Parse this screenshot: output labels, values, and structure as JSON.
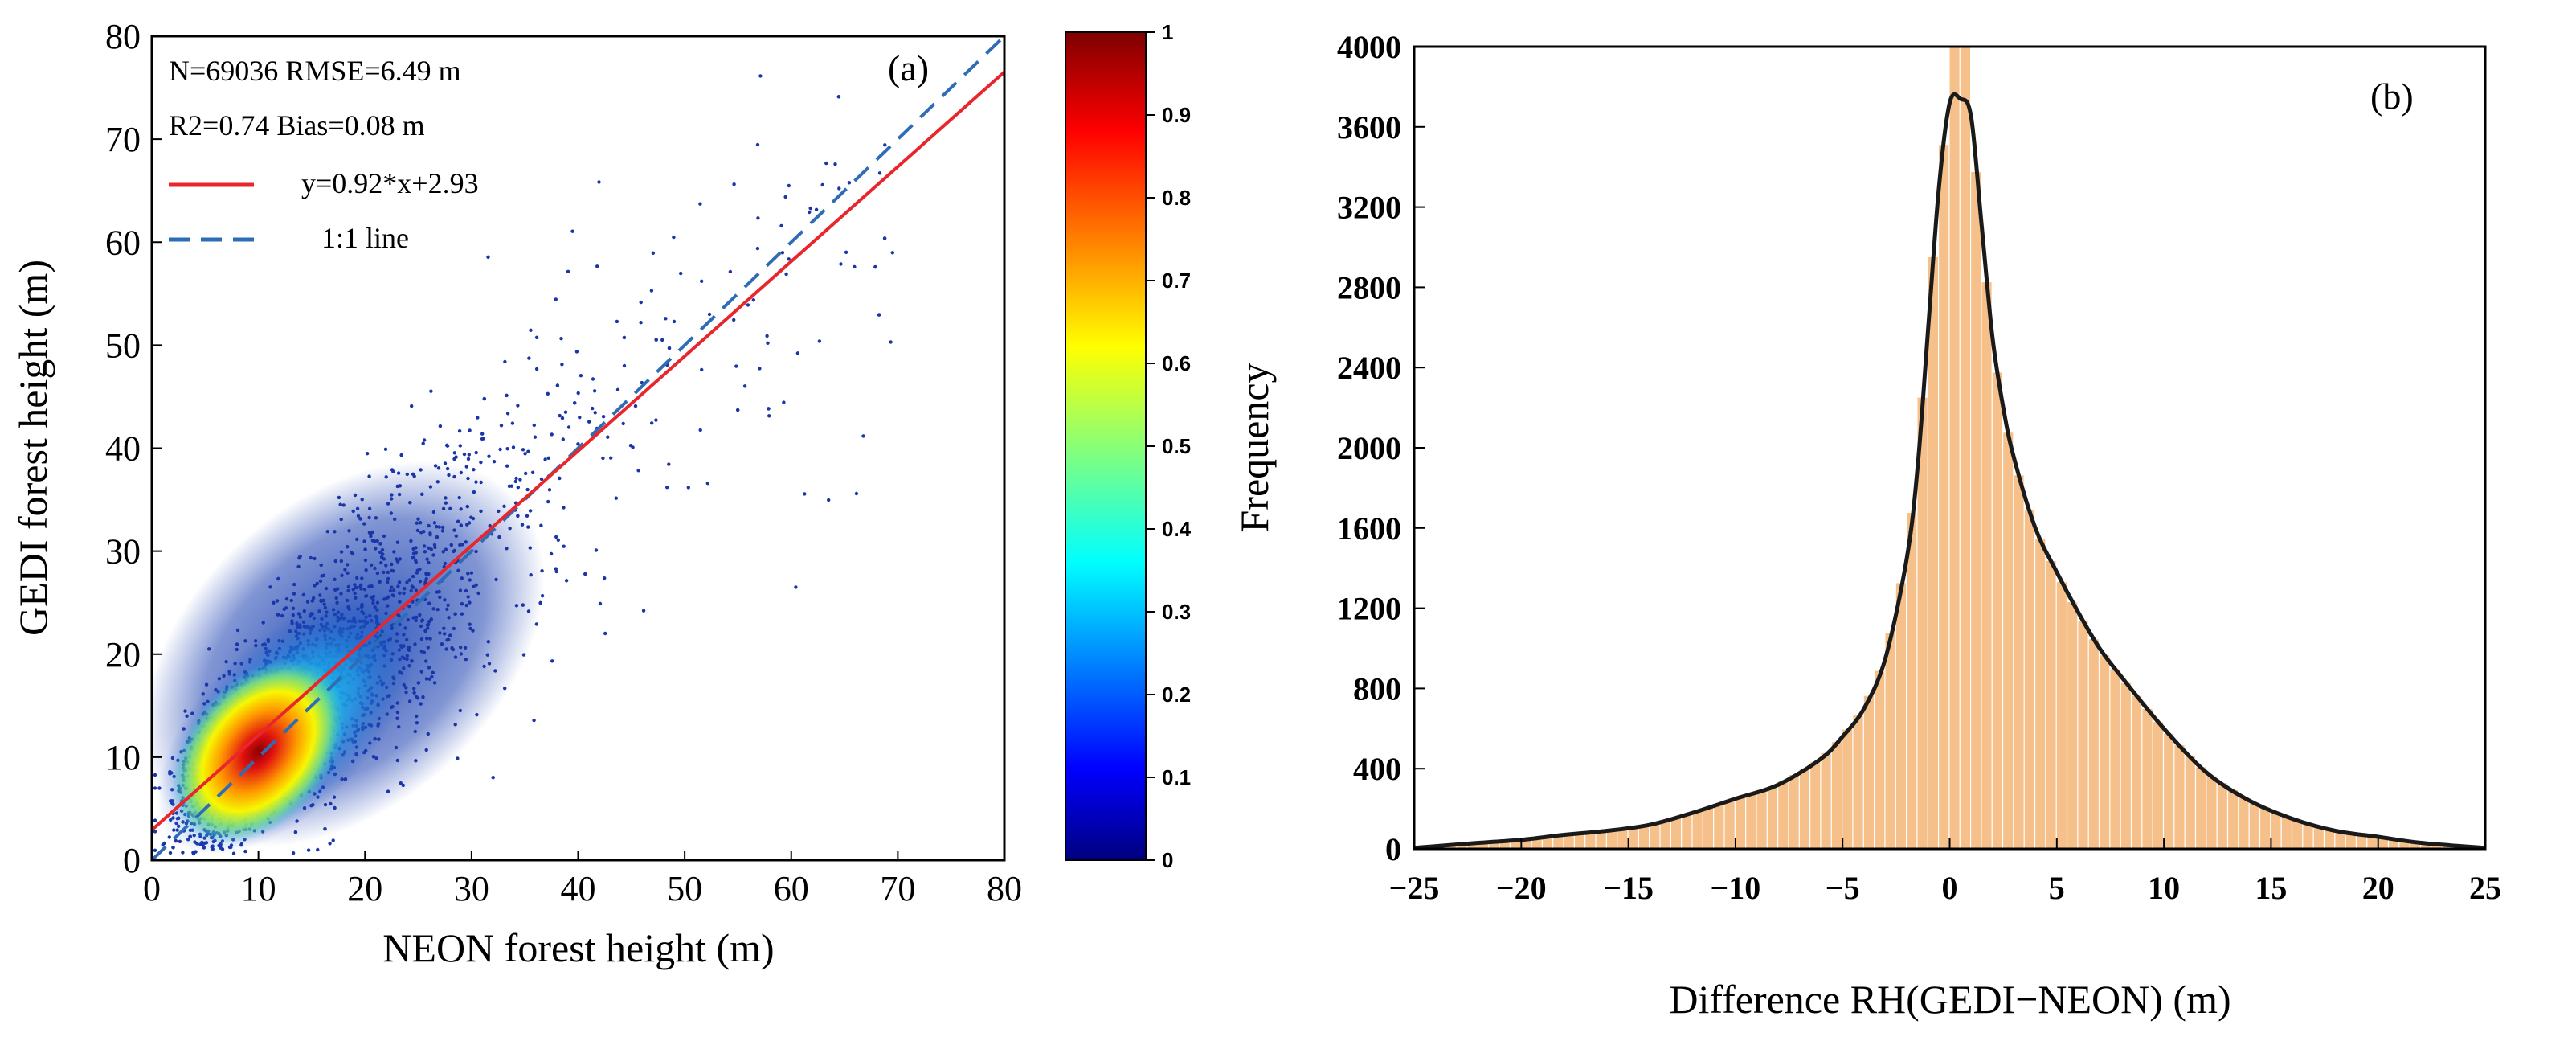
{
  "chart_data": [
    {
      "type": "scatter",
      "panel_label": "(a)",
      "xlabel": "NEON forest height (m)",
      "ylabel": "GEDI forest height (m)",
      "xlim": [
        0,
        80
      ],
      "ylim": [
        0,
        80
      ],
      "x_ticks": [
        "0",
        "10",
        "20",
        "30",
        "40",
        "50",
        "60",
        "70",
        "80"
      ],
      "y_ticks": [
        "0",
        "10",
        "20",
        "30",
        "40",
        "50",
        "60",
        "70",
        "80"
      ],
      "stats": {
        "line1": "N=69036  RMSE=6.49 m",
        "line2": "R2=0.74    Bias=0.08 m"
      },
      "legend": [
        {
          "label": "y=0.92*x+2.93",
          "style": "solid",
          "color": "#e8262b"
        },
        {
          "label": "1:1 line",
          "style": "dashed",
          "color": "#2e6db5"
        }
      ],
      "fit_line": {
        "slope": 0.92,
        "intercept": 2.93
      },
      "identity_line": {
        "slope": 1,
        "intercept": 0
      },
      "density": {
        "n_points": 69036,
        "peak_x": 8.5,
        "peak_y": 9,
        "colormap": "jet"
      },
      "colorbar": {
        "range": [
          0,
          1
        ],
        "ticks": [
          "0",
          "0.1",
          "0.2",
          "0.3",
          "0.4",
          "0.5",
          "0.6",
          "0.7",
          "0.8",
          "0.9",
          "1"
        ]
      },
      "grid": false
    },
    {
      "type": "bar",
      "panel_label": "(b)",
      "xlabel": "Difference RH(GEDI−NEON) (m)",
      "ylabel": "Frequency",
      "xlim": [
        -25,
        25
      ],
      "ylim": [
        0,
        4000
      ],
      "x_ticks": [
        "−25",
        "−20",
        "−15",
        "−10",
        "−5",
        "0",
        "5",
        "10",
        "15",
        "20",
        "25"
      ],
      "y_ticks": [
        "0",
        "400",
        "800",
        "1200",
        "1600",
        "2000",
        "2400",
        "2800",
        "3200",
        "3600",
        "4000"
      ],
      "bin_width": 0.5,
      "bar_color": "#f5c089",
      "curve_color": "#1a1a1a",
      "curve": {
        "x": [
          -25,
          -22,
          -20,
          -18,
          -16,
          -14,
          -12,
          -10,
          -8,
          -6,
          -5,
          -4,
          -3,
          -2,
          -1.5,
          -1,
          -0.5,
          0,
          0.5,
          1,
          1.5,
          2,
          2.5,
          3,
          4,
          5,
          6,
          7,
          8,
          10,
          12,
          14,
          16,
          18,
          20,
          22,
          25
        ],
        "y": [
          5,
          30,
          45,
          70,
          90,
          120,
          180,
          250,
          320,
          450,
          560,
          700,
          950,
          1450,
          1900,
          2600,
          3300,
          3720,
          3740,
          3650,
          3100,
          2550,
          2200,
          1950,
          1600,
          1380,
          1180,
          1000,
          860,
          600,
          380,
          240,
          150,
          90,
          60,
          30,
          5
        ]
      },
      "grid": false
    }
  ]
}
